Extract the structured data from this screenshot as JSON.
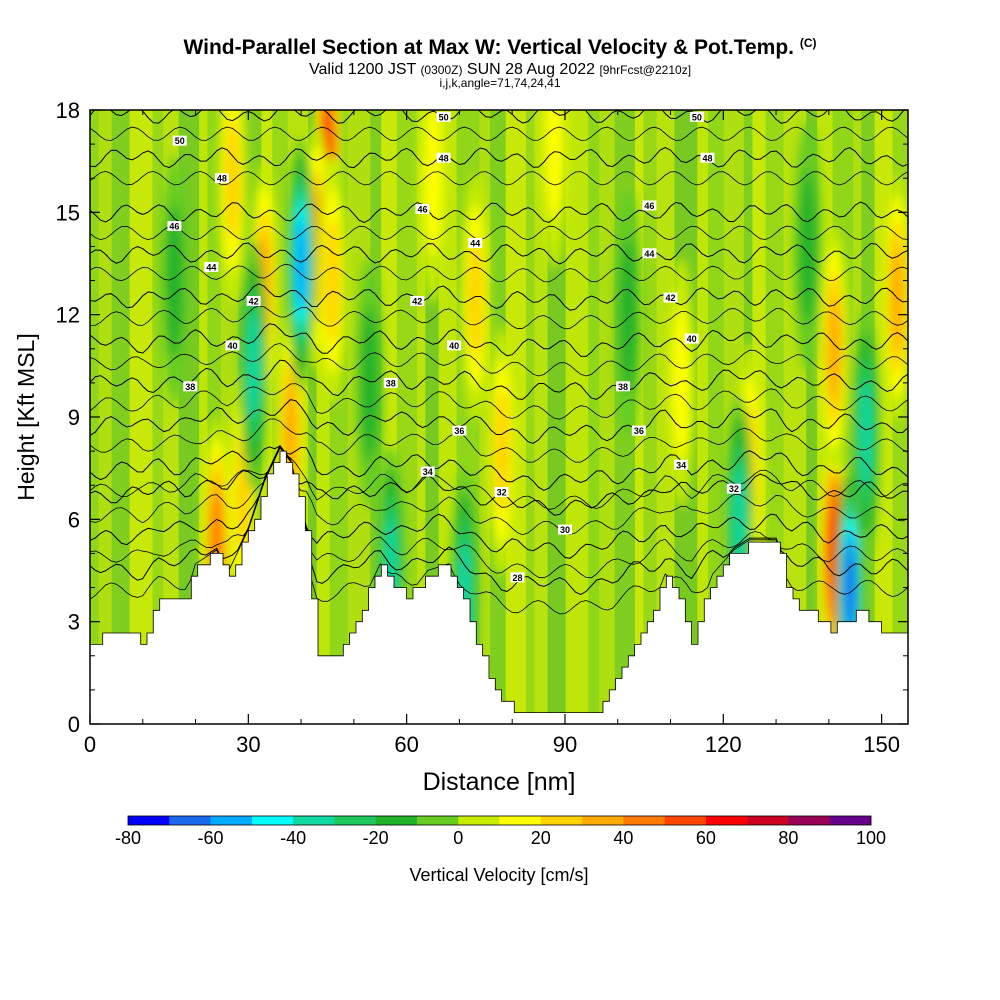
{
  "header": {
    "title": "Wind-Parallel Section at Max W: Vertical Velocity & Pot.Temp.",
    "title_suffix": "(C)",
    "valid_prefix": "Valid 1200 JST",
    "valid_utc": "(0300Z)",
    "valid_date": "SUN 28 Aug 2022",
    "forecast": "[9hrFcst@2210z]",
    "params": "i,j,k,angle=71,74,24,41"
  },
  "chart_data": {
    "type": "heatmap",
    "xlabel": "Distance [nm]",
    "ylabel": "Height [Kft MSL]",
    "xlim": [
      0,
      155
    ],
    "ylim": [
      0,
      18
    ],
    "x_ticks": [
      0,
      30,
      60,
      90,
      120,
      150
    ],
    "y_ticks": [
      0,
      3,
      6,
      9,
      12,
      15,
      18
    ],
    "terrain_kft": [
      [
        0,
        2.3
      ],
      [
        3,
        2.7
      ],
      [
        8,
        2.7
      ],
      [
        10,
        2.4
      ],
      [
        13,
        3.6
      ],
      [
        18,
        3.6
      ],
      [
        20,
        4.6
      ],
      [
        24,
        5.0
      ],
      [
        26,
        4.3
      ],
      [
        30,
        5.6
      ],
      [
        33,
        7.0
      ],
      [
        36,
        8.0
      ],
      [
        38,
        7.6
      ],
      [
        41,
        5.6
      ],
      [
        43,
        2.0
      ],
      [
        47,
        2.0
      ],
      [
        51,
        3.3
      ],
      [
        55,
        4.6
      ],
      [
        60,
        3.6
      ],
      [
        64,
        4.4
      ],
      [
        68,
        4.6
      ],
      [
        71,
        3.6
      ],
      [
        74,
        2.0
      ],
      [
        78,
        0.7
      ],
      [
        82,
        0.3
      ],
      [
        90,
        0.3
      ],
      [
        95,
        0.3
      ],
      [
        99,
        1.0
      ],
      [
        103,
        2.3
      ],
      [
        106,
        3.0
      ],
      [
        109,
        4.3
      ],
      [
        112,
        3.4
      ],
      [
        114,
        2.4
      ],
      [
        118,
        4.3
      ],
      [
        122,
        5.0
      ],
      [
        125,
        5.3
      ],
      [
        130,
        5.3
      ],
      [
        133,
        3.6
      ],
      [
        137,
        3.3
      ],
      [
        140,
        2.7
      ],
      [
        143,
        3.0
      ],
      [
        146,
        3.3
      ],
      [
        150,
        2.7
      ],
      [
        155,
        2.7
      ]
    ],
    "colorbar": {
      "label": "Vertical Velocity [cm/s]",
      "levels": [
        -80,
        -70,
        -60,
        -50,
        -40,
        -30,
        -20,
        -10,
        0,
        10,
        20,
        30,
        40,
        50,
        60,
        70,
        80,
        90,
        100
      ],
      "tick_labels": [
        -80,
        -60,
        -40,
        -20,
        0,
        20,
        40,
        60,
        80,
        100
      ],
      "colors": [
        "#0000ff",
        "#1a68f0",
        "#00aaff",
        "#00ffff",
        "#10d8a0",
        "#1ec85a",
        "#22b22a",
        "#66cc22",
        "#c8ec00",
        "#ffff00",
        "#ffd200",
        "#ffaa00",
        "#ff7a00",
        "#ff4500",
        "#ff0000",
        "#cc0022",
        "#990055",
        "#66008c"
      ]
    },
    "updrafts": [
      {
        "x": 24,
        "y": 5.3,
        "w": 45
      },
      {
        "x": 29,
        "y": 6.8,
        "w": 30
      },
      {
        "x": 33,
        "y": 12.8,
        "w": 35
      },
      {
        "x": 38,
        "y": 8.5,
        "w": 40
      },
      {
        "x": 45,
        "y": 16.5,
        "w": 65
      },
      {
        "x": 43,
        "y": 14,
        "w": 40
      },
      {
        "x": 46,
        "y": 13,
        "w": 30
      },
      {
        "x": 73,
        "y": 12.5,
        "w": 25
      },
      {
        "x": 78,
        "y": 8,
        "w": 30
      },
      {
        "x": 112,
        "y": 10,
        "w": 20
      },
      {
        "x": 125,
        "y": 7.5,
        "w": 30
      },
      {
        "x": 141,
        "y": 5,
        "w": 65
      },
      {
        "x": 141,
        "y": 11,
        "w": 35
      },
      {
        "x": 153,
        "y": 12.5,
        "w": 40
      },
      {
        "x": 27,
        "y": 16,
        "w": 25
      },
      {
        "x": 65,
        "y": 16,
        "w": 20
      },
      {
        "x": 88,
        "y": 17,
        "w": 15
      }
    ],
    "downdrafts": [
      {
        "x": 40,
        "y": 13.5,
        "w": -55
      },
      {
        "x": 31,
        "y": 10.5,
        "w": -40
      },
      {
        "x": 144,
        "y": 4.0,
        "w": -65
      },
      {
        "x": 147,
        "y": 8.5,
        "w": -35
      },
      {
        "x": 71,
        "y": 3.8,
        "w": -40
      },
      {
        "x": 57,
        "y": 4.5,
        "w": -40
      },
      {
        "x": 123,
        "y": 6.0,
        "w": -35
      },
      {
        "x": 53,
        "y": 10,
        "w": -15
      },
      {
        "x": 102,
        "y": 12,
        "w": -15
      },
      {
        "x": 16,
        "y": 13,
        "w": -15
      },
      {
        "x": 136,
        "y": 14,
        "w": -15
      }
    ],
    "theta_contours_C": [
      {
        "theta": 28,
        "ref_kft": 4.6
      },
      {
        "theta": 30,
        "ref_kft": 5.6
      },
      {
        "theta": 32,
        "ref_kft": 6.8
      },
      {
        "theta": 34,
        "ref_kft": 7.5
      },
      {
        "theta": 36,
        "ref_kft": 8.8
      },
      {
        "theta": 38,
        "ref_kft": 10.0
      },
      {
        "theta": 40,
        "ref_kft": 11.2
      },
      {
        "theta": 42,
        "ref_kft": 12.5
      },
      {
        "theta": 44,
        "ref_kft": 13.8
      },
      {
        "theta": 46,
        "ref_kft": 15.0
      },
      {
        "theta": 48,
        "ref_kft": 16.6
      },
      {
        "theta": 50,
        "ref_kft": 17.9
      }
    ],
    "theta_labels": [
      {
        "text": "50",
        "x": 17,
        "y": 17.1
      },
      {
        "text": "48",
        "x": 25,
        "y": 16.0
      },
      {
        "text": "46",
        "x": 16,
        "y": 14.6
      },
      {
        "text": "44",
        "x": 23,
        "y": 13.4
      },
      {
        "text": "42",
        "x": 31,
        "y": 12.4
      },
      {
        "text": "40",
        "x": 27,
        "y": 11.1
      },
      {
        "text": "38",
        "x": 19,
        "y": 9.9
      },
      {
        "text": "50",
        "x": 67,
        "y": 17.8
      },
      {
        "text": "48",
        "x": 67,
        "y": 16.6
      },
      {
        "text": "46",
        "x": 63,
        "y": 15.1
      },
      {
        "text": "44",
        "x": 73,
        "y": 14.1
      },
      {
        "text": "42",
        "x": 62,
        "y": 12.4
      },
      {
        "text": "40",
        "x": 69,
        "y": 11.1
      },
      {
        "text": "38",
        "x": 57,
        "y": 10.0
      },
      {
        "text": "36",
        "x": 70,
        "y": 8.6
      },
      {
        "text": "34",
        "x": 64,
        "y": 7.4
      },
      {
        "text": "32",
        "x": 78,
        "y": 6.8
      },
      {
        "text": "30",
        "x": 90,
        "y": 5.7
      },
      {
        "text": "28",
        "x": 81,
        "y": 4.3
      },
      {
        "text": "50",
        "x": 115,
        "y": 17.8
      },
      {
        "text": "48",
        "x": 117,
        "y": 16.6
      },
      {
        "text": "46",
        "x": 106,
        "y": 15.2
      },
      {
        "text": "44",
        "x": 106,
        "y": 13.8
      },
      {
        "text": "42",
        "x": 110,
        "y": 12.5
      },
      {
        "text": "40",
        "x": 114,
        "y": 11.3
      },
      {
        "text": "38",
        "x": 101,
        "y": 9.9
      },
      {
        "text": "36",
        "x": 104,
        "y": 8.6
      },
      {
        "text": "34",
        "x": 112,
        "y": 7.6
      },
      {
        "text": "32",
        "x": 122,
        "y": 6.9
      }
    ]
  }
}
